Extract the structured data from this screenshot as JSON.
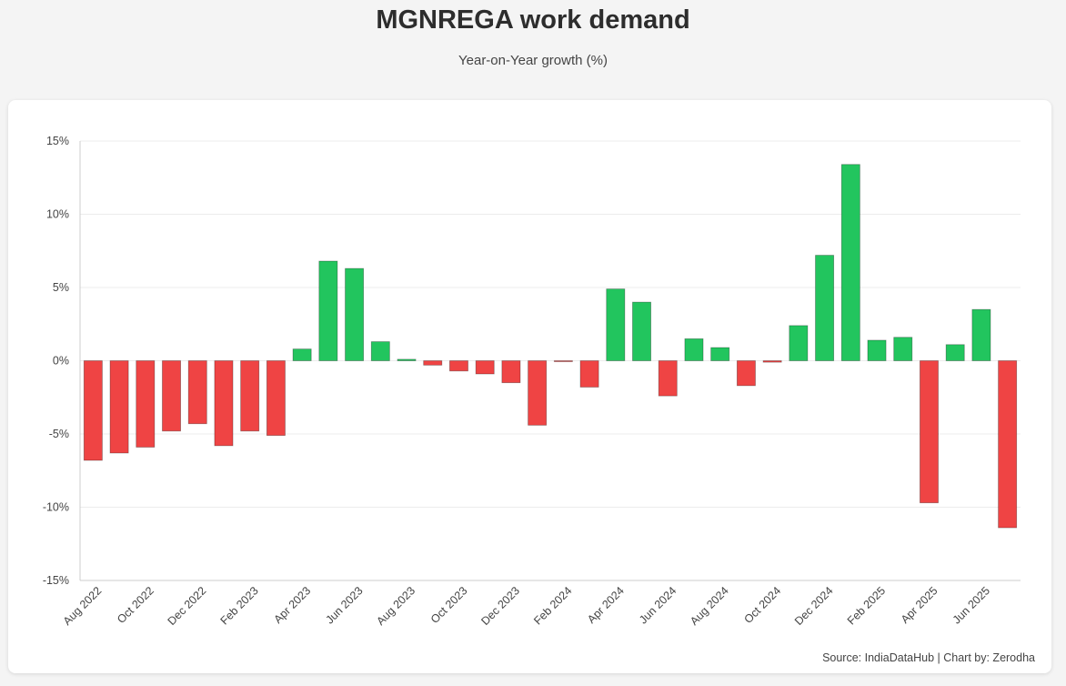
{
  "header": {
    "title": "MGNREGA work demand",
    "subtitle": "Year-on-Year growth (%)"
  },
  "footer": {
    "source": "Source: IndiaDataHub | Chart by: Zerodha"
  },
  "colors": {
    "positive": "#22c55e",
    "negative": "#ef4444",
    "grid": "#ececec",
    "axis": "#cccccc",
    "tick_text": "#444444"
  },
  "chart_data": {
    "type": "bar",
    "title": "MGNREGA work demand",
    "subtitle": "Year-on-Year growth (%)",
    "ylim": [
      -15,
      15
    ],
    "yticks": [
      15,
      10,
      5,
      0,
      -5,
      -10,
      -15
    ],
    "ytick_labels": [
      "15%",
      "10%",
      "5%",
      "0%",
      "-5%",
      "-10%",
      "-15%"
    ],
    "xtick_labels": [
      "Aug 2022",
      "Oct 2022",
      "Dec 2022",
      "Feb 2023",
      "Apr 2023",
      "Jun 2023",
      "Aug 2023",
      "Oct 2023",
      "Dec 2023",
      "Feb 2024",
      "Apr 2024",
      "Jun 2024",
      "Aug 2024",
      "Oct 2024",
      "Dec 2024",
      "Feb 2025",
      "Apr 2025",
      "Jun 2025"
    ],
    "grid": true,
    "legend": "none",
    "categories": [
      "Aug 2022",
      "Sep 2022",
      "Oct 2022",
      "Nov 2022",
      "Dec 2022",
      "Jan 2023",
      "Feb 2023",
      "Mar 2023",
      "Apr 2023",
      "May 2023",
      "Jun 2023",
      "Jul 2023",
      "Aug 2023",
      "Sep 2023",
      "Oct 2023",
      "Nov 2023",
      "Dec 2023",
      "Jan 2024",
      "Feb 2024",
      "Mar 2024",
      "Apr 2024",
      "May 2024",
      "Jun 2024",
      "Jul 2024",
      "Aug 2024",
      "Sep 2024",
      "Oct 2024",
      "Nov 2024",
      "Dec 2024",
      "Jan 2025",
      "Feb 2025",
      "Mar 2025",
      "Apr 2025",
      "May 2025",
      "Jun 2025",
      "Jul 2025"
    ],
    "values": [
      -6.8,
      -6.3,
      -5.9,
      -4.8,
      -4.3,
      -5.8,
      -4.8,
      -5.1,
      0.8,
      6.8,
      6.3,
      1.3,
      0.1,
      -0.3,
      -0.7,
      -0.9,
      -1.5,
      -4.4,
      -0.05,
      -1.8,
      4.9,
      4.0,
      -2.4,
      1.5,
      0.9,
      -1.7,
      -0.1,
      2.4,
      7.2,
      13.4,
      1.4,
      1.6,
      -9.7,
      1.1,
      3.5,
      -11.4
    ]
  }
}
